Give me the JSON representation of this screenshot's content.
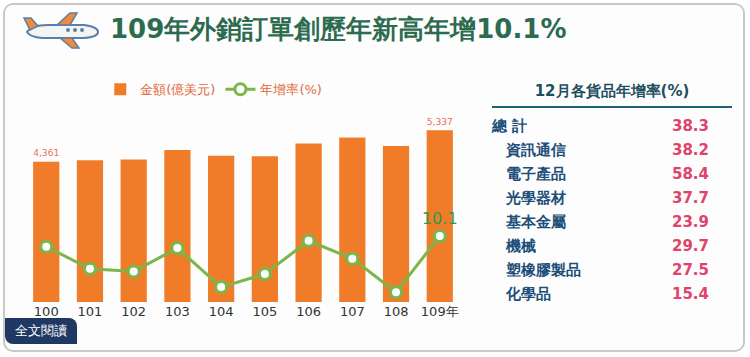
{
  "title": "109年外銷訂單創歷年新高年增10.1%",
  "button": "全文閱讀",
  "chart_data": {
    "type": "bar",
    "categories": [
      "100",
      "101",
      "102",
      "103",
      "104",
      "105",
      "106",
      "107",
      "108",
      "109年"
    ],
    "series": [
      {
        "name": "金額(億美元)",
        "type": "bar",
        "color": "#f07c2a",
        "values": [
          4361,
          4410,
          4428,
          4728,
          4545,
          4531,
          4928,
          5113,
          4847,
          5337
        ],
        "value_labels": [
          "4,361",
          null,
          null,
          null,
          null,
          null,
          null,
          null,
          null,
          "5,337"
        ]
      },
      {
        "name": "年增率(%)",
        "type": "line",
        "axis": "y2",
        "color": "#7ab648",
        "marker": "circle",
        "values": [
          7.2,
          1.1,
          0.4,
          6.8,
          -3.9,
          -0.3,
          8.8,
          3.9,
          -5.3,
          10.1
        ],
        "value_labels": [
          null,
          null,
          null,
          null,
          null,
          null,
          null,
          null,
          null,
          "10.1"
        ]
      }
    ],
    "ylim": [
      0,
      6000
    ],
    "y2lim": [
      -8,
      45
    ],
    "legend": "top",
    "tick_labels": "x",
    "grid": false
  },
  "table": {
    "title": "12月各貨品年增率(%)",
    "rows": [
      [
        "總 計",
        38.3
      ],
      [
        "資訊通信",
        38.2
      ],
      [
        "電子產品",
        58.4
      ],
      [
        "光學器材",
        37.7
      ],
      [
        "基本金屬",
        23.9
      ],
      [
        "機械",
        29.7
      ],
      [
        "塑橡膠製品",
        27.5
      ],
      [
        "化學品",
        15.4
      ]
    ]
  }
}
